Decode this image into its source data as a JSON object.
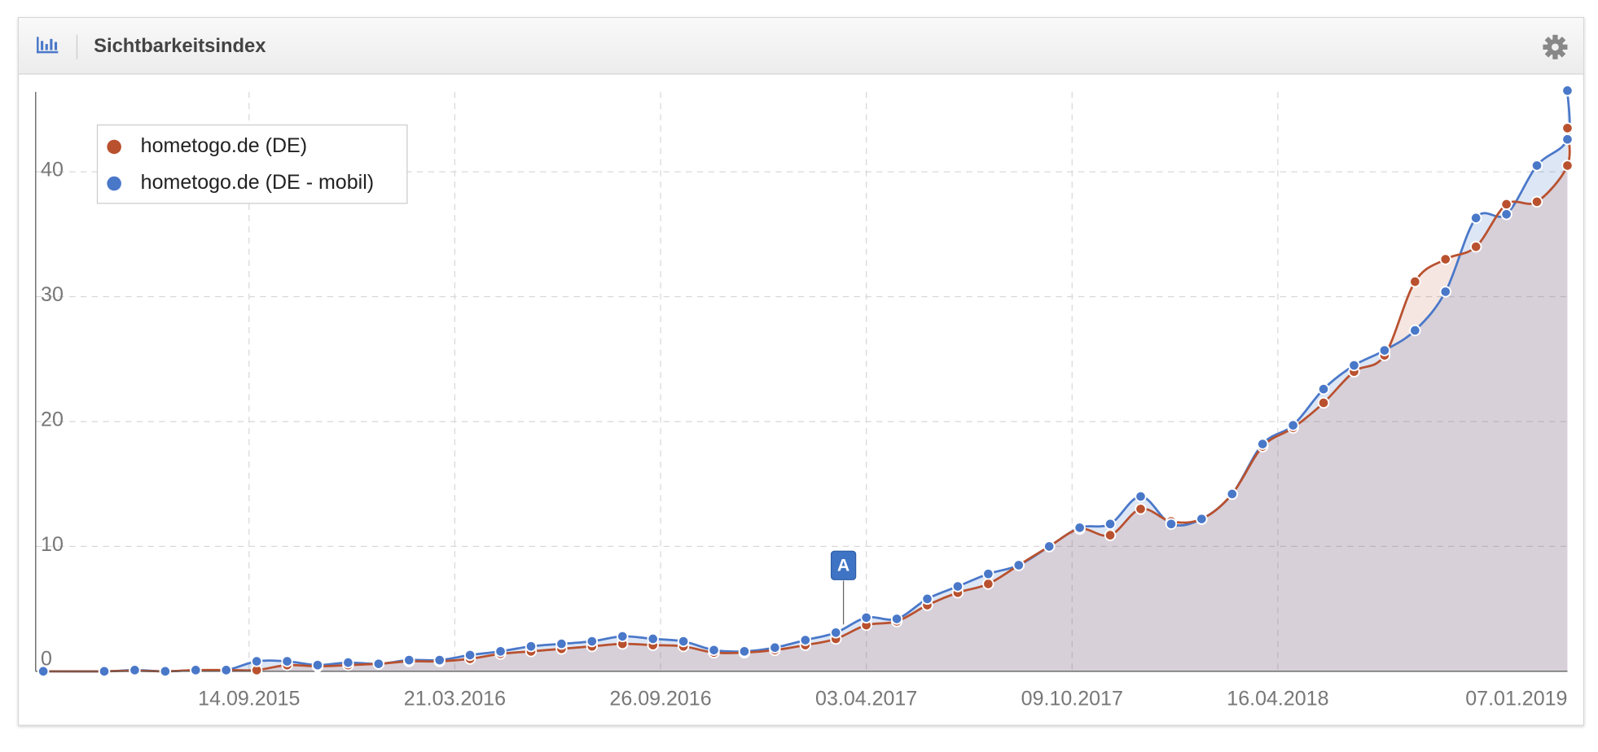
{
  "header": {
    "title": "Sichtbarkeitsindex"
  },
  "chart_data": {
    "type": "area-line",
    "x": [
      "2015-03-09",
      "2015-05-04",
      "2015-06-01",
      "2015-06-29",
      "2015-07-27",
      "2015-08-24",
      "2015-09-21",
      "2015-10-19",
      "2015-11-16",
      "2015-12-14",
      "2016-01-11",
      "2016-02-08",
      "2016-03-07",
      "2016-04-04",
      "2016-05-02",
      "2016-05-30",
      "2016-06-27",
      "2016-07-25",
      "2016-08-22",
      "2016-09-19",
      "2016-10-17",
      "2016-11-14",
      "2016-12-12",
      "2017-01-09",
      "2017-02-06",
      "2017-03-06",
      "2017-04-03",
      "2017-05-01",
      "2017-05-29",
      "2017-06-26",
      "2017-07-24",
      "2017-08-21",
      "2017-09-18",
      "2017-10-16",
      "2017-11-13",
      "2017-12-11",
      "2018-01-08",
      "2018-02-05",
      "2018-03-05",
      "2018-04-02",
      "2018-04-30",
      "2018-05-28",
      "2018-06-25",
      "2018-07-23",
      "2018-08-20",
      "2018-09-17",
      "2018-10-15",
      "2018-11-12",
      "2018-12-10",
      "2019-01-07",
      "2019-01-07"
    ],
    "series": [
      {
        "name": "hometogo.de (DE)",
        "color": "#b9512f",
        "values": [
          0,
          0,
          0.05,
          0,
          0.1,
          0.1,
          0.1,
          0.5,
          0.4,
          0.5,
          0.6,
          0.8,
          0.8,
          1.0,
          1.4,
          1.6,
          1.8,
          2.0,
          2.2,
          2.1,
          2.0,
          1.5,
          1.5,
          1.7,
          2.1,
          2.6,
          3.7,
          4.0,
          5.3,
          6.3,
          7.0,
          8.5,
          10.0,
          11.4,
          10.9,
          13.0,
          12.0,
          12.2,
          14.2,
          18.0,
          19.5,
          21.5,
          24.0,
          25.3,
          31.2,
          33.0,
          34.0,
          37.4,
          37.6,
          40.5,
          43.5
        ]
      },
      {
        "name": "hometogo.de (DE - mobil)",
        "color": "#4a78c9",
        "values": [
          0,
          0,
          0.1,
          0,
          0.1,
          0.1,
          0.8,
          0.8,
          0.5,
          0.7,
          0.6,
          0.9,
          0.9,
          1.3,
          1.6,
          2.0,
          2.2,
          2.4,
          2.8,
          2.6,
          2.4,
          1.7,
          1.6,
          1.9,
          2.5,
          3.1,
          4.3,
          4.2,
          5.8,
          6.8,
          7.8,
          8.5,
          10.0,
          11.5,
          11.8,
          14.0,
          11.8,
          12.2,
          14.2,
          18.2,
          19.7,
          22.6,
          24.5,
          25.7,
          27.3,
          30.4,
          36.3,
          36.6,
          40.5,
          42.6,
          46.5
        ]
      }
    ],
    "xlim": [
      "2015-03-02",
      "2019-01-07"
    ],
    "xticks": [
      {
        "value": "2015-09-14",
        "label": "14.09.2015"
      },
      {
        "value": "2016-03-21",
        "label": "21.03.2016"
      },
      {
        "value": "2016-09-26",
        "label": "26.09.2016"
      },
      {
        "value": "2017-04-03",
        "label": "03.04.2017"
      },
      {
        "value": "2017-10-09",
        "label": "09.10.2017"
      },
      {
        "value": "2018-04-16",
        "label": "16.04.2018"
      },
      {
        "value": "2019-01-07",
        "label": "07.01.2019"
      }
    ],
    "ylim": [
      0,
      46.4
    ],
    "yticks": [
      0,
      10,
      20,
      30,
      40
    ],
    "grid": true,
    "legend": "upper left",
    "annotations": [
      {
        "x": "2017-03-13",
        "label": "A",
        "color": "#3f73c4"
      }
    ]
  }
}
